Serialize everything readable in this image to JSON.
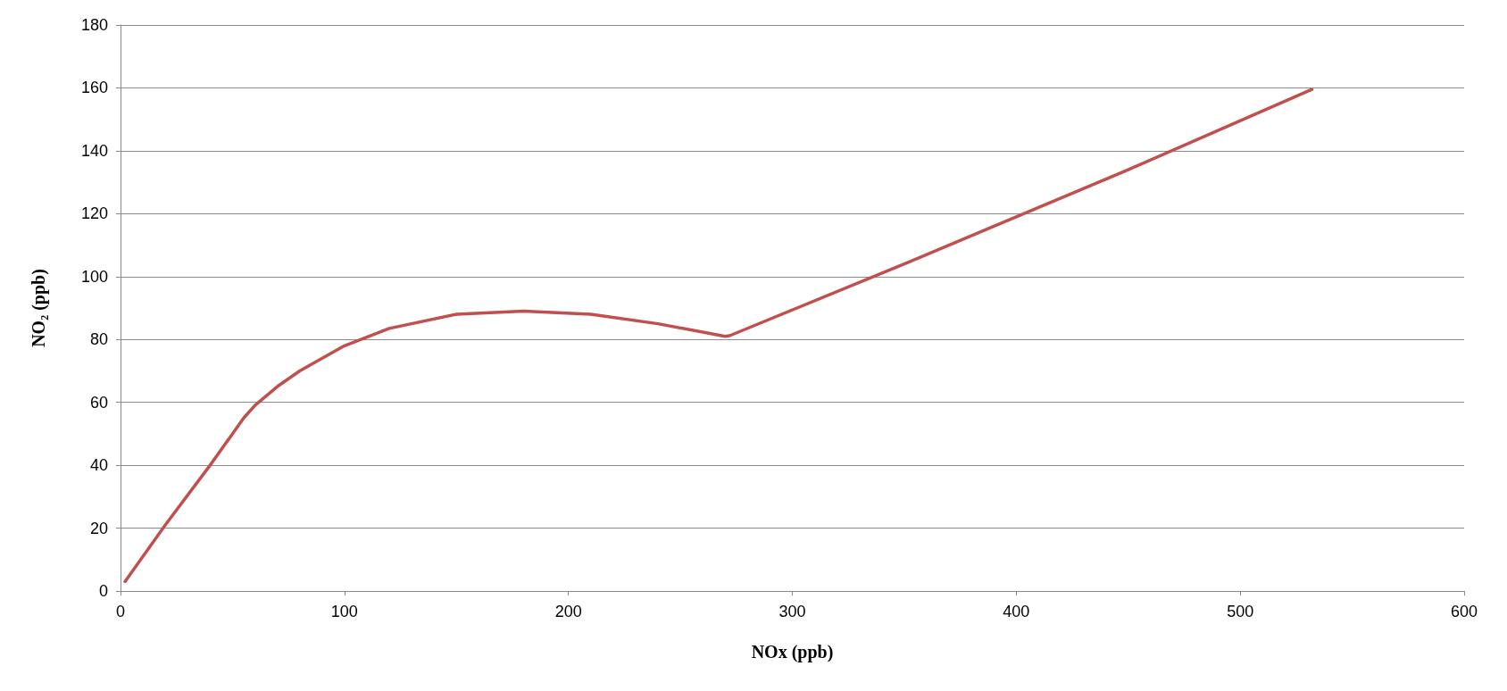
{
  "chart_data": {
    "type": "line",
    "xlabel": "NOx (ppb)",
    "ylabel": "NO₂ (ppb)",
    "xlim": [
      0,
      600
    ],
    "xticks": [
      0,
      100,
      200,
      300,
      400,
      500,
      600
    ],
    "ylim": [
      0,
      180
    ],
    "yticks": [
      0,
      20,
      40,
      60,
      80,
      100,
      120,
      140,
      160,
      180
    ],
    "grid": "y",
    "marker": "none",
    "line_style": "solid",
    "series": [
      {
        "color": "#c0504d",
        "x": [
          2,
          20,
          40,
          55,
          60,
          70,
          80,
          100,
          120,
          150,
          180,
          210,
          240,
          270,
          272,
          350,
          450,
          532
        ],
        "values": [
          3,
          21,
          40,
          55,
          59,
          65,
          70,
          78,
          83.5,
          88,
          89,
          88,
          85,
          81,
          81.2,
          104,
          134,
          159.5
        ]
      }
    ]
  }
}
